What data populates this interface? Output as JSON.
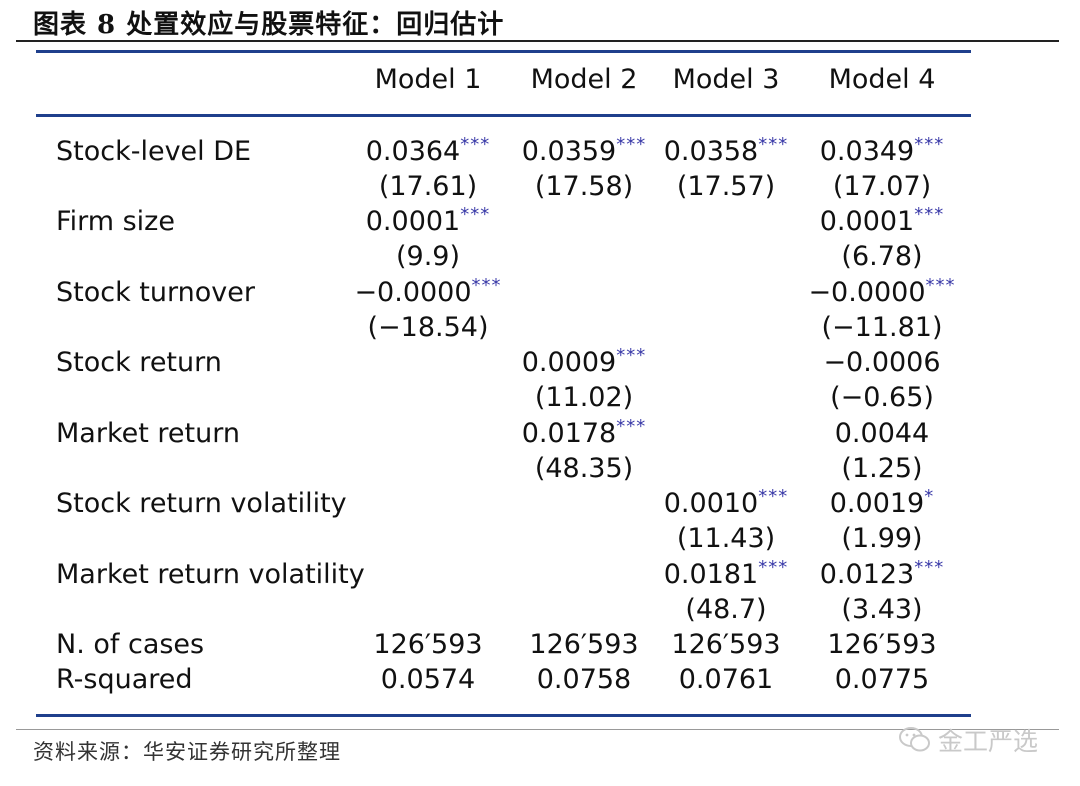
{
  "title": "图表 8  处置效应与股票特征：回归估计",
  "columns": [
    "Model 1",
    "Model 2",
    "Model 3",
    "Model 4"
  ],
  "rows": [
    {
      "label": "Stock-level DE",
      "cells": [
        {
          "coef": "0.0364",
          "stars": "***",
          "t": "(17.61)"
        },
        {
          "coef": "0.0359",
          "stars": "***",
          "t": "(17.58)"
        },
        {
          "coef": "0.0358",
          "stars": "***",
          "t": "(17.57)"
        },
        {
          "coef": "0.0349",
          "stars": "***",
          "t": "(17.07)"
        }
      ]
    },
    {
      "label": "Firm size",
      "cells": [
        {
          "coef": "0.0001",
          "stars": "***",
          "t": "(9.9)"
        },
        {
          "coef": "",
          "stars": "",
          "t": ""
        },
        {
          "coef": "",
          "stars": "",
          "t": ""
        },
        {
          "coef": "0.0001",
          "stars": "***",
          "t": "(6.78)"
        }
      ]
    },
    {
      "label": "Stock turnover",
      "cells": [
        {
          "coef": "−0.0000",
          "stars": "***",
          "t": "(−18.54)"
        },
        {
          "coef": "",
          "stars": "",
          "t": ""
        },
        {
          "coef": "",
          "stars": "",
          "t": ""
        },
        {
          "coef": "−0.0000",
          "stars": "***",
          "t": "(−11.81)"
        }
      ]
    },
    {
      "label": "Stock return",
      "cells": [
        {
          "coef": "",
          "stars": "",
          "t": ""
        },
        {
          "coef": "0.0009",
          "stars": "***",
          "t": "(11.02)"
        },
        {
          "coef": "",
          "stars": "",
          "t": ""
        },
        {
          "coef": "−0.0006",
          "stars": "",
          "t": "(−0.65)"
        }
      ]
    },
    {
      "label": "Market return",
      "cells": [
        {
          "coef": "",
          "stars": "",
          "t": ""
        },
        {
          "coef": "0.0178",
          "stars": "***",
          "t": "(48.35)"
        },
        {
          "coef": "",
          "stars": "",
          "t": ""
        },
        {
          "coef": "0.0044",
          "stars": "",
          "t": "(1.25)"
        }
      ]
    },
    {
      "label": "Stock return volatility",
      "cells": [
        {
          "coef": "",
          "stars": "",
          "t": ""
        },
        {
          "coef": "",
          "stars": "",
          "t": ""
        },
        {
          "coef": "0.0010",
          "stars": "***",
          "t": "(11.43)"
        },
        {
          "coef": "0.0019",
          "stars": "*",
          "t": "(1.99)"
        }
      ]
    },
    {
      "label": "Market return volatility",
      "cells": [
        {
          "coef": "",
          "stars": "",
          "t": ""
        },
        {
          "coef": "",
          "stars": "",
          "t": ""
        },
        {
          "coef": "0.0181",
          "stars": "***",
          "t": "(48.7)"
        },
        {
          "coef": "0.0123",
          "stars": "***",
          "t": "(3.43)"
        }
      ]
    }
  ],
  "summary": [
    {
      "label": "N. of cases",
      "values": [
        "126′593",
        "126′593",
        "126′593",
        "126′593"
      ]
    },
    {
      "label": "R-squared",
      "values": [
        "0.0574",
        "0.0758",
        "0.0761",
        "0.0775"
      ]
    }
  ],
  "source": "资料来源：华安证券研究所整理",
  "watermark": "金工严选",
  "colors": {
    "rule": "#1f3f8c",
    "stars": "#3a3aa8"
  }
}
